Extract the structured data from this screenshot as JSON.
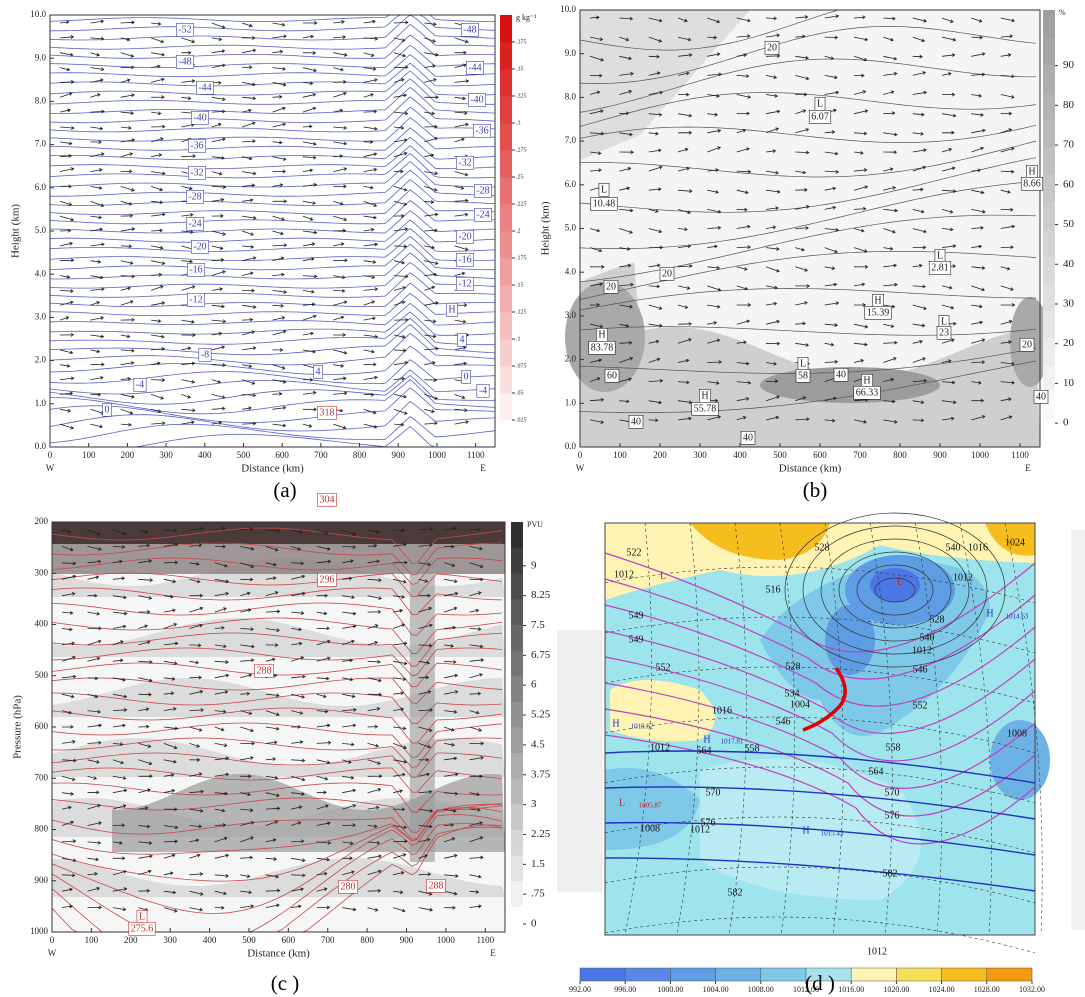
{
  "chart_data": [
    {
      "type": "contour",
      "caption": "(a)",
      "xlabel": "Distance (km)",
      "ylabel": "Height (km)",
      "x_start_label": "W",
      "x_end_label": "E",
      "xlim": [
        0,
        1150
      ],
      "xticks": [
        0,
        100,
        200,
        300,
        400,
        500,
        600,
        700,
        800,
        900,
        1000,
        1100
      ],
      "ylim": [
        0,
        10
      ],
      "yticks": [
        {
          "value": 0,
          "label": "0.0"
        },
        {
          "value": 1,
          "label": "1.0"
        },
        {
          "value": 2,
          "label": "2.0"
        },
        {
          "value": 3,
          "label": "3.0"
        },
        {
          "value": 4,
          "label": "4.0"
        },
        {
          "value": 5,
          "label": "5.0"
        },
        {
          "value": 6,
          "label": "6.0"
        },
        {
          "value": 7,
          "label": "7.0"
        },
        {
          "value": 8,
          "label": "8.0"
        },
        {
          "value": 9,
          "label": "9.0"
        },
        {
          "value": 10,
          "label": "10.0"
        }
      ],
      "colorbar_label": "g kg⁻¹",
      "colorbar_lim": [
        0,
        0.4
      ],
      "colorbar_ticks": [
        {
          "value": 0.025,
          "label": ".025"
        },
        {
          "value": 0.05,
          "label": ".05"
        },
        {
          "value": 0.075,
          "label": ".075"
        },
        {
          "value": 0.1,
          "label": ".1"
        },
        {
          "value": 0.125,
          "label": ".125"
        },
        {
          "value": 0.15,
          "label": ".15"
        },
        {
          "value": 0.175,
          "label": ".175"
        },
        {
          "value": 0.2,
          "label": ".2"
        },
        {
          "value": 0.225,
          "label": ".225"
        },
        {
          "value": 0.25,
          "label": ".25"
        },
        {
          "value": 0.275,
          "label": ".275"
        },
        {
          "value": 0.3,
          "label": ".3"
        },
        {
          "value": 0.325,
          "label": ".325"
        },
        {
          "value": 0.35,
          "label": ".35"
        },
        {
          "value": 0.375,
          "label": ".375"
        }
      ],
      "contour_labels": [
        -52,
        -48,
        -44,
        -40,
        -36,
        -32,
        -28,
        -24,
        -20,
        -16,
        -12,
        -8,
        -4,
        0,
        4,
        -48,
        -44,
        -40,
        -36,
        -32,
        -28,
        -24,
        -20,
        -16,
        -12,
        4,
        0,
        -4,
        "H"
      ]
    },
    {
      "type": "contour",
      "caption": "(b)",
      "xlabel": "Distance (km)",
      "ylabel": "Height (km)",
      "x_start_label": "W",
      "x_end_label": "E",
      "xlim": [
        0,
        1150
      ],
      "xticks": [
        0,
        100,
        200,
        300,
        400,
        500,
        600,
        700,
        800,
        900,
        1000,
        1100
      ],
      "ylim": [
        0,
        10
      ],
      "yticks": [
        {
          "value": 0,
          "label": "0.0"
        },
        {
          "value": 1,
          "label": "1.0"
        },
        {
          "value": 2,
          "label": "2.0"
        },
        {
          "value": 3,
          "label": "3.0"
        },
        {
          "value": 4,
          "label": "4.0"
        },
        {
          "value": 5,
          "label": "5.0"
        },
        {
          "value": 6,
          "label": "6.0"
        },
        {
          "value": 7,
          "label": "7.0"
        },
        {
          "value": 8,
          "label": "8.0"
        },
        {
          "value": 9,
          "label": "9.0"
        },
        {
          "value": 10,
          "label": "10.0"
        }
      ],
      "colorbar_label": "%",
      "colorbar_lim": [
        -6,
        104
      ],
      "colorbar_ticks": [
        0,
        10,
        20,
        30,
        40,
        50,
        60,
        70,
        80,
        90
      ],
      "contour_labels": [
        20,
        "L",
        6.07,
        "H",
        8.66,
        "L",
        10.48,
        20,
        20,
        20,
        "L",
        2.81,
        "H",
        15.39,
        "H",
        83.78,
        "L",
        23,
        "L",
        58,
        40,
        "H",
        66.33,
        "H",
        55.78,
        60,
        40,
        40,
        40
      ]
    },
    {
      "type": "contour",
      "caption": "(c )",
      "xlabel": "Distance (km)",
      "ylabel": "Pressure (hPa)",
      "x_start_label": "W",
      "x_end_label": "E",
      "xlim": [
        0,
        1150
      ],
      "xticks": [
        0,
        100,
        200,
        300,
        400,
        500,
        600,
        700,
        800,
        900,
        1000,
        1100
      ],
      "ylim": [
        1000,
        200
      ],
      "yticks": [
        1000,
        900,
        800,
        700,
        600,
        500,
        400,
        300,
        200
      ],
      "colorbar_label": "PVU",
      "colorbar_lim": [
        -0.2,
        10.1
      ],
      "colorbar_ticks": [
        0,
        {
          "value": 0.75,
          "label": ".75"
        },
        1.5,
        2.25,
        3,
        3.75,
        4.5,
        5.25,
        6,
        6.75,
        7.5,
        8.25,
        9
      ],
      "contour_labels": [
        318,
        304,
        296,
        288,
        280,
        288,
        "L",
        275.6
      ]
    },
    {
      "type": "map",
      "caption": "(d )",
      "colorbar_lim": [
        992,
        1032
      ],
      "colorbar_ticks": [
        {
          "value": 992,
          "label": "992.00"
        },
        {
          "value": 996,
          "label": "996.00"
        },
        {
          "value": 1000,
          "label": "1000.00"
        },
        {
          "value": 1004,
          "label": "1004.00"
        },
        {
          "value": 1008,
          "label": "1008.00"
        },
        {
          "value": 1012,
          "label": "1012.00"
        },
        {
          "value": 1016,
          "label": "1016.00"
        },
        {
          "value": 1020,
          "label": "1020.00"
        },
        {
          "value": 1024,
          "label": "1024.00"
        },
        {
          "value": 1028,
          "label": "1028.00"
        },
        {
          "value": 1032,
          "label": "1032.00"
        }
      ],
      "colorbar_colors": [
        "#4a76e6",
        "#5a88e6",
        "#5e9ce4",
        "#6cb2e4",
        "#7ec8e8",
        "#a6e2ec",
        "#fff4b4",
        "#f6e05a",
        "#f6bd1e",
        "#f49a0e"
      ],
      "contour_labels": [
        528,
        540,
        1016,
        1024,
        522,
        1012,
        "L",
        516,
        1012,
        549,
        549,
        552,
        "H",
        1019.62,
        528,
        534,
        1004,
        1016,
        546,
        "H",
        1017.81,
        564,
        558,
        1012,
        "L",
        1005.87,
        1008,
        1012,
        576,
        570,
        "H",
        1015.43,
        582,
        1012,
        564,
        570,
        576,
        582,
        558,
        552,
        1008,
        "H",
        1014.63,
        1012,
        546,
        540,
        528,
        "L"
      ]
    }
  ]
}
